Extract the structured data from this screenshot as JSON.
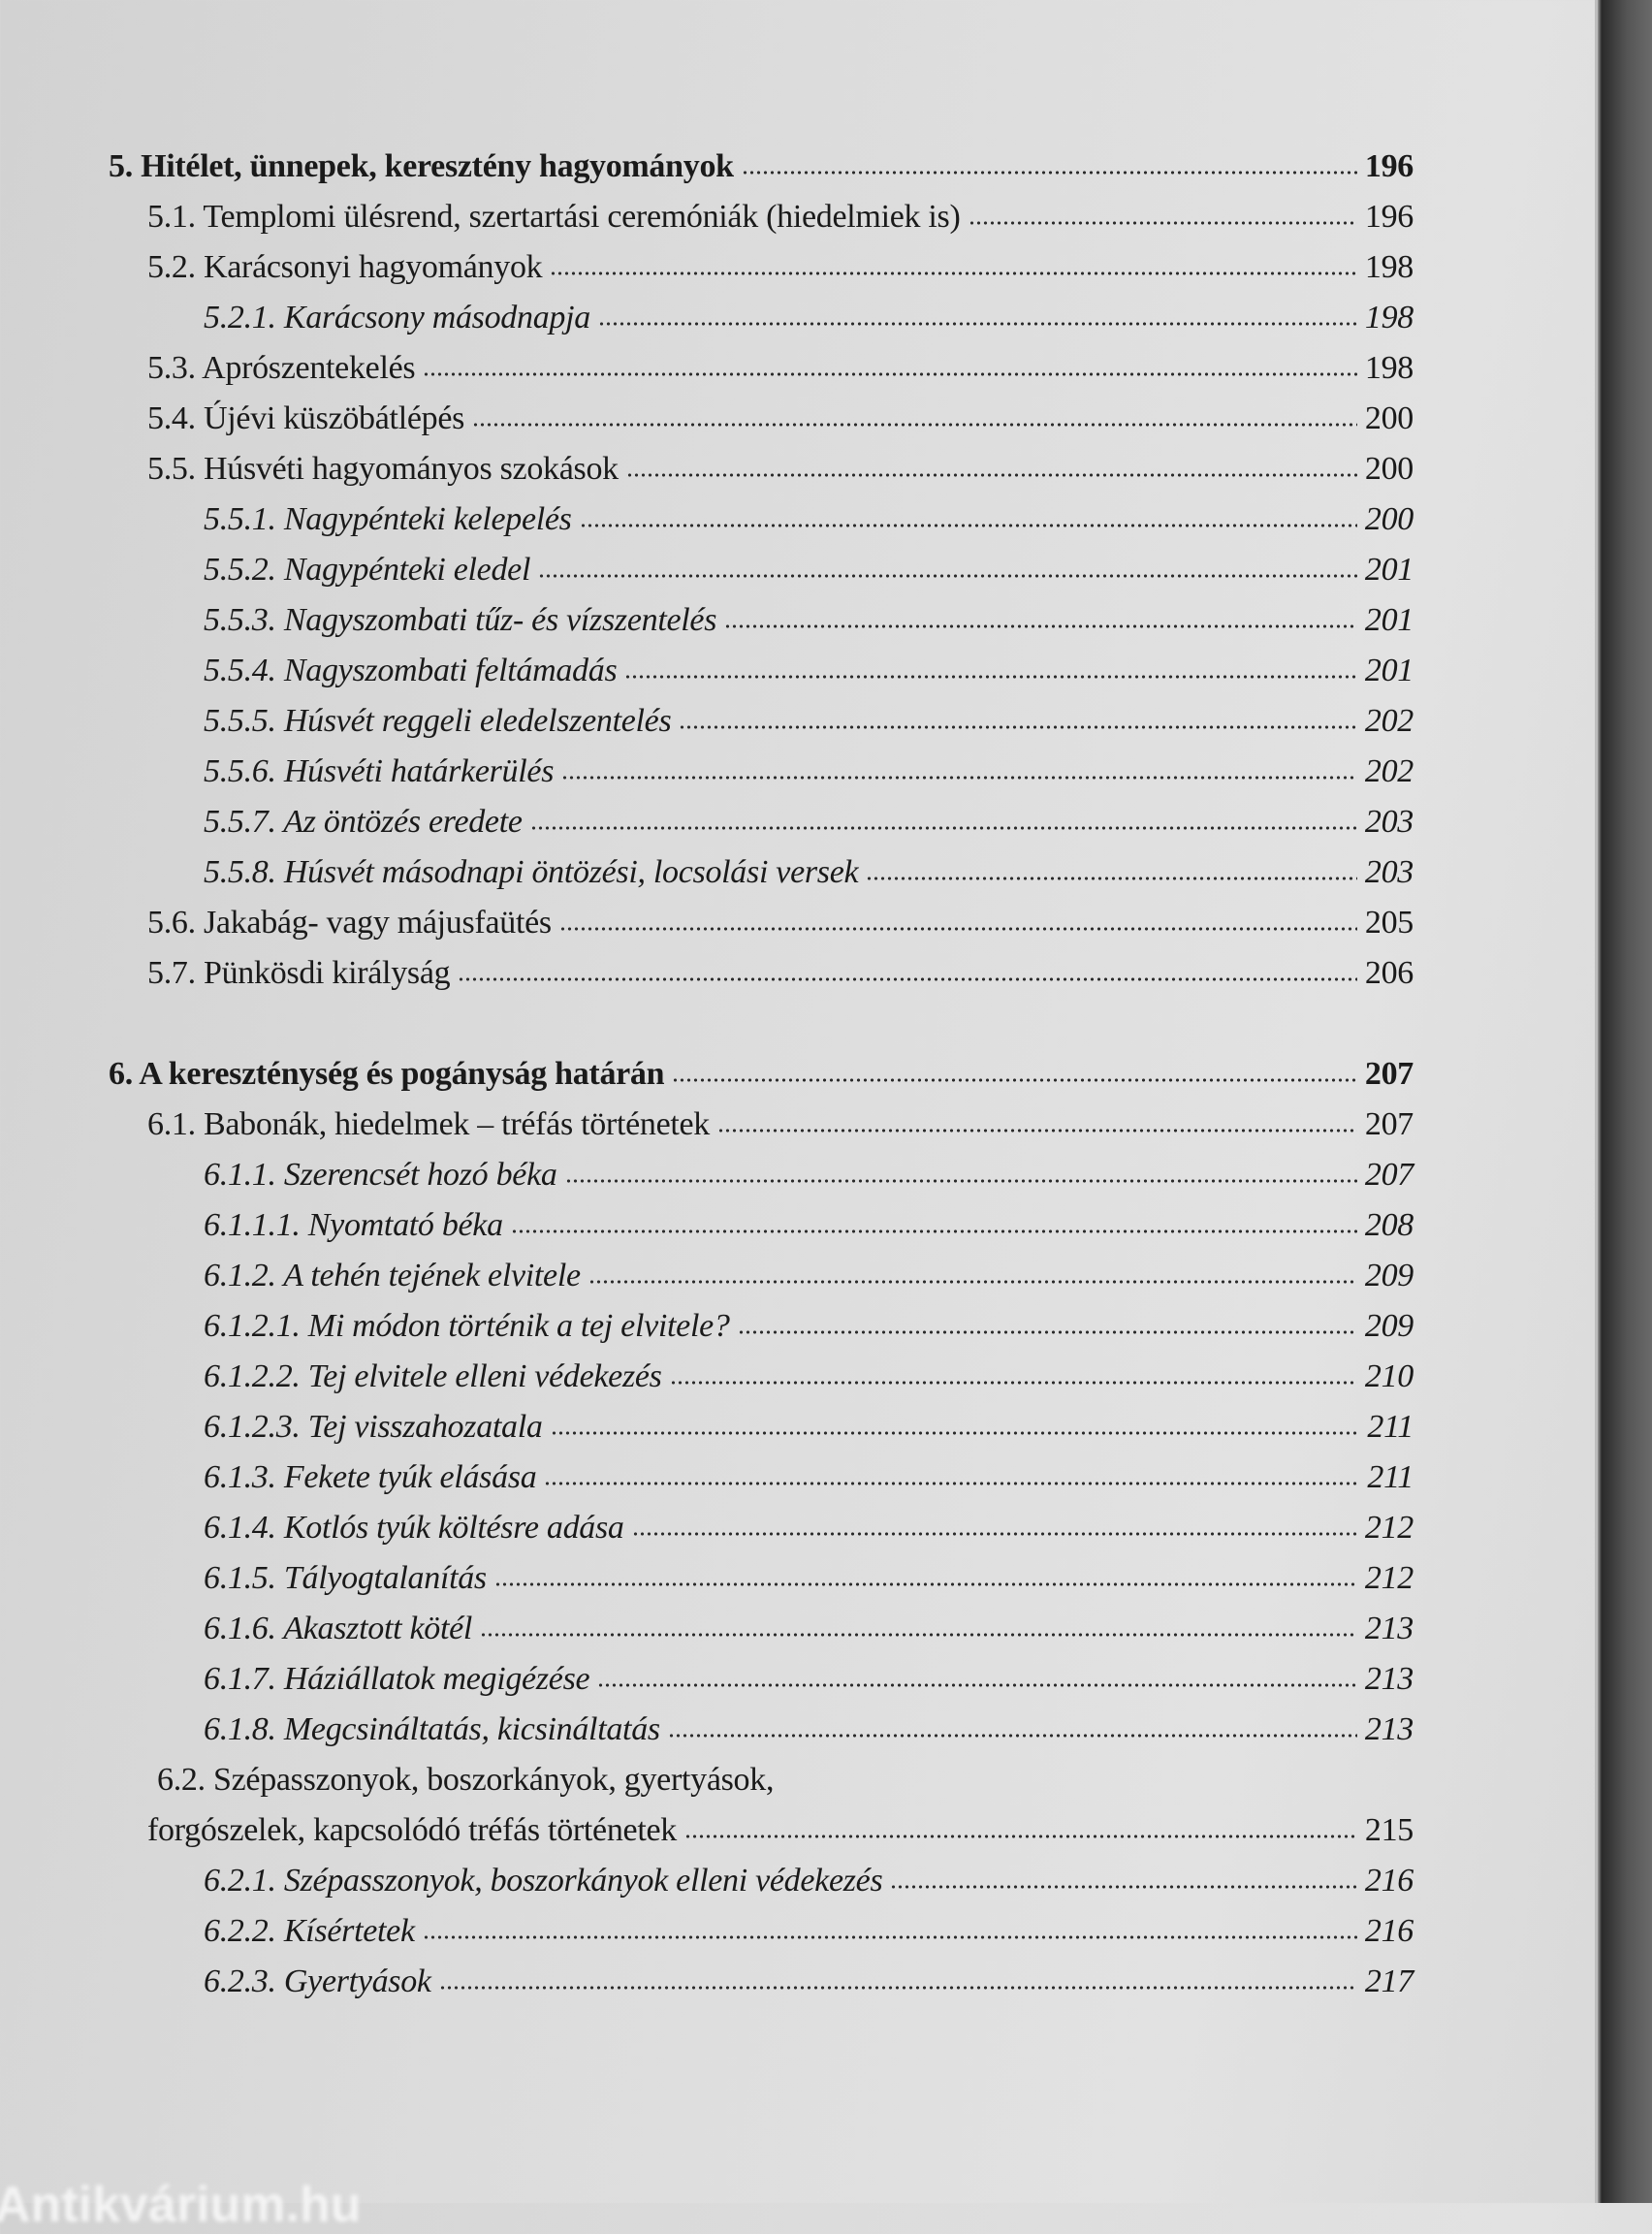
{
  "toc": [
    {
      "text": "5. Hitélet, ünnepek, keresztény hagyományok",
      "page": "196",
      "level": 0,
      "bold": true
    },
    {
      "text": "5.1. Templomi ülésrend, szertartási ceremóniák (hiedelmiek is)",
      "page": "196",
      "level": 1
    },
    {
      "text": "5.2. Karácsonyi hagyományok",
      "page": "198",
      "level": 1
    },
    {
      "text": "5.2.1. Karácsony másodnapja",
      "page": "198",
      "level": 2,
      "italic": true
    },
    {
      "text": "5.3. Aprószentekelés",
      "page": "198",
      "level": 1
    },
    {
      "text": "5.4. Újévi küszöbátlépés",
      "page": "200",
      "level": 1
    },
    {
      "text": "5.5. Húsvéti hagyományos szokások",
      "page": "200",
      "level": 1
    },
    {
      "text": "5.5.1. Nagypénteki kelepelés",
      "page": "200",
      "level": 2,
      "italic": true
    },
    {
      "text": "5.5.2. Nagypénteki eledel",
      "page": "201",
      "level": 2,
      "italic": true
    },
    {
      "text": "5.5.3. Nagyszombati tűz- és vízszentelés",
      "page": "201",
      "level": 2,
      "italic": true
    },
    {
      "text": "5.5.4. Nagyszombati feltámadás",
      "page": "201",
      "level": 2,
      "italic": true
    },
    {
      "text": "5.5.5. Húsvét reggeli eledelszentelés",
      "page": "202",
      "level": 2,
      "italic": true
    },
    {
      "text": "5.5.6. Húsvéti határkerülés",
      "page": "202",
      "level": 2,
      "italic": true
    },
    {
      "text": "5.5.7. Az öntözés eredete",
      "page": "203",
      "level": 2,
      "italic": true
    },
    {
      "text": "5.5.8. Húsvét másodnapi öntözési, locsolási versek",
      "page": "203",
      "level": 2,
      "italic": true
    },
    {
      "text": "5.6. Jakabág- vagy májusfaütés",
      "page": "205",
      "level": 1
    },
    {
      "text": "5.7. Pünkösdi királyság",
      "page": "206",
      "level": 1
    },
    {
      "blank": true
    },
    {
      "text": "6. A kereszténység és pogányság határán",
      "page": "207",
      "level": 0,
      "bold": true
    },
    {
      "text": "6.1. Babonák, hiedelmek – tréfás történetek",
      "page": "207",
      "level": 1
    },
    {
      "text": "6.1.1. Szerencsét hozó béka",
      "page": "207",
      "level": 2,
      "italic": true
    },
    {
      "text": "6.1.1.1. Nyomtató béka",
      "page": "208",
      "level": 2,
      "italic": true
    },
    {
      "text": "6.1.2. A tehén tejének elvitele",
      "page": "209",
      "level": 2,
      "italic": true
    },
    {
      "text": "6.1.2.1. Mi módon történik a tej elvitele?",
      "page": "209",
      "level": 2,
      "italic": true
    },
    {
      "text": "6.1.2.2. Tej elvitele elleni védekezés",
      "page": "210",
      "level": 2,
      "italic": true
    },
    {
      "text": "6.1.2.3. Tej visszahozatala",
      "page": "211",
      "level": 2,
      "italic": true
    },
    {
      "text": "6.1.3. Fekete tyúk elásása",
      "page": "211",
      "level": 2,
      "italic": true
    },
    {
      "text": "6.1.4. Kotlós tyúk költésre adása",
      "page": "212",
      "level": 2,
      "italic": true
    },
    {
      "text": "6.1.5. Tályogtalanítás",
      "page": "212",
      "level": 2,
      "italic": true
    },
    {
      "text": "6.1.6. Akasztott kötél",
      "page": "213",
      "level": 2,
      "italic": true
    },
    {
      "text": "6.1.7. Háziállatok megigézése",
      "page": "213",
      "level": 2,
      "italic": true
    },
    {
      "text": "6.1.8. Megcsináltatás, kicsináltatás",
      "page": "213",
      "level": 2,
      "italic": true
    },
    {
      "text": "6.2. Szépasszonyok, boszorkányok, gyertyások,",
      "continued": "forgószelek, kapcsolódó tréfás történetek",
      "page": "215",
      "level": 1
    },
    {
      "text": "6.2.1. Szépasszonyok, boszorkányok elleni védekezés",
      "page": "216",
      "level": 2,
      "italic": true
    },
    {
      "text": "6.2.2. Kísértetek",
      "page": "216",
      "level": 2,
      "italic": true
    },
    {
      "text": "6.2.3. Gyertyások",
      "page": "217",
      "level": 2,
      "italic": true
    }
  ],
  "watermark": "Antikvárium.hu"
}
